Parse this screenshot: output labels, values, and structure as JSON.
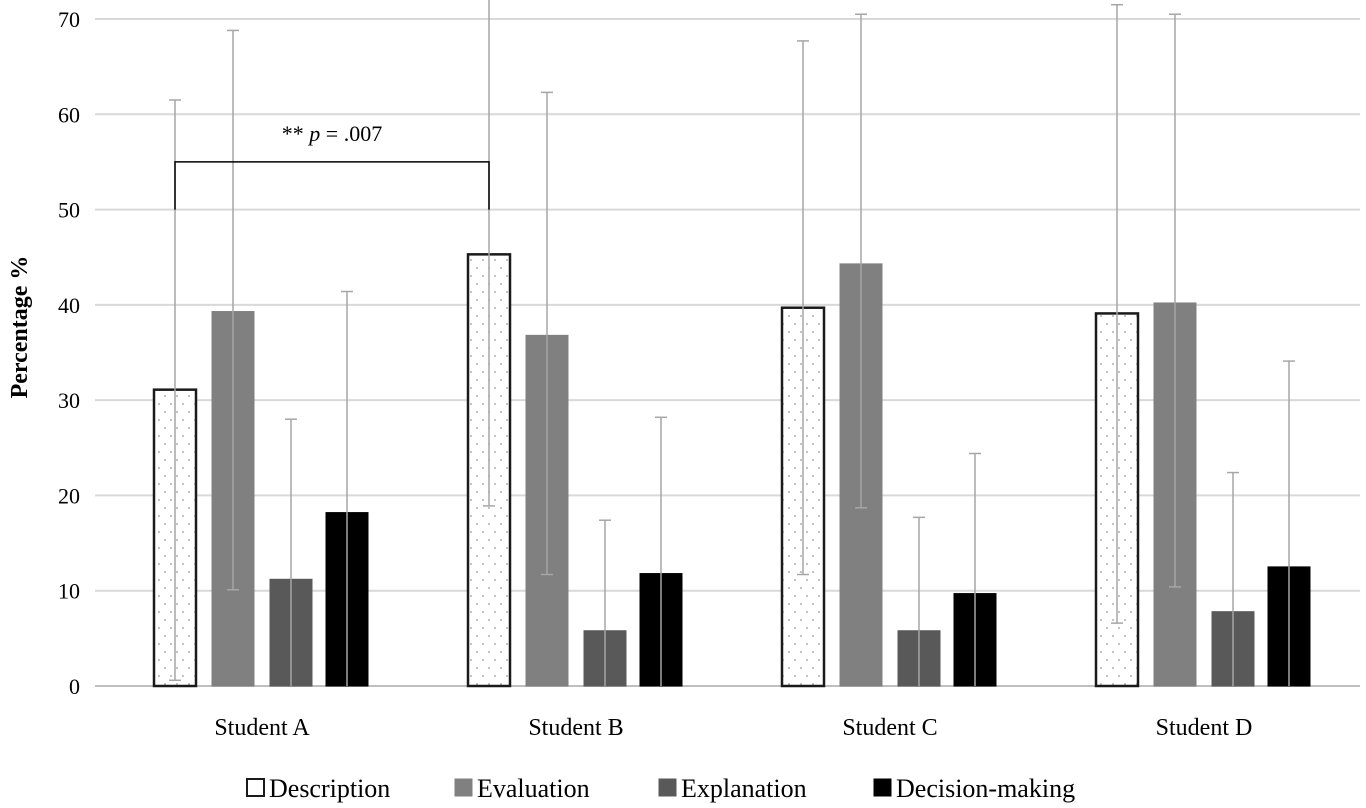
{
  "chart_data": {
    "type": "bar",
    "ylabel": "Percentage %",
    "xlabel": "",
    "ylim": [
      0,
      70
    ],
    "yticks": [
      0,
      10,
      20,
      30,
      40,
      50,
      60,
      70
    ],
    "grid": true,
    "legend_position": "bottom",
    "categories": [
      "Student A",
      "Student B",
      "Student C",
      "Student D"
    ],
    "series": [
      {
        "name": "Description",
        "values": [
          31.1,
          45.3,
          39.7,
          39.1
        ],
        "error_upper": [
          61.5,
          72.2,
          67.7,
          71.5
        ],
        "error_lower": [
          0.6,
          18.9,
          11.7,
          6.6
        ],
        "color": "#ffffff",
        "pattern": "dotted",
        "stroke": "#1a1a1a"
      },
      {
        "name": "Evaluation",
        "values": [
          39.3,
          36.8,
          44.3,
          40.2
        ],
        "error_upper": [
          68.8,
          62.3,
          70.5,
          70.5
        ],
        "error_lower": [
          10.1,
          11.7,
          18.7,
          10.4
        ],
        "color": "#808080",
        "stroke": "#808080"
      },
      {
        "name": "Explanation",
        "values": [
          11.2,
          5.8,
          5.8,
          7.8
        ],
        "error_upper": [
          28.0,
          17.4,
          17.7,
          22.4
        ],
        "error_lower": [
          0,
          0,
          0,
          0
        ],
        "color": "#595959",
        "stroke": "#595959"
      },
      {
        "name": "Decision-making",
        "values": [
          18.2,
          11.8,
          9.7,
          12.5
        ],
        "error_upper": [
          41.4,
          28.2,
          24.4,
          34.1
        ],
        "error_lower": [
          0,
          0,
          0,
          0
        ],
        "color": "#000000",
        "stroke": "#000000"
      }
    ],
    "annotations": [
      {
        "text_prefix": "** ",
        "text_italic": "p",
        "text_suffix": " = .007",
        "bracket_level": 55,
        "from_category": "Student A",
        "to_category": "Student B",
        "series": "Description"
      }
    ]
  }
}
